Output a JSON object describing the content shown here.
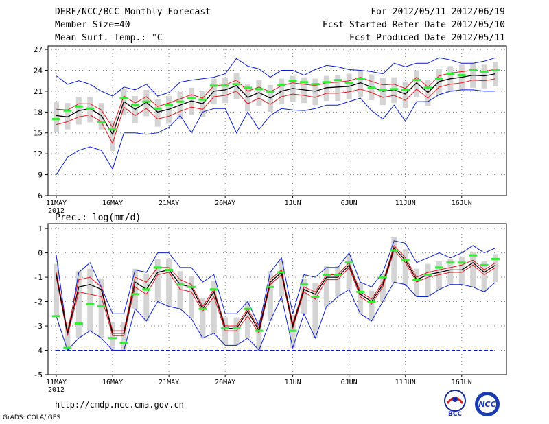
{
  "header": {
    "title": "DERF/NCC/BCC Monthly Forecast",
    "member": "Member Size=40",
    "variable": "Mean Surf. Temp.: °C",
    "period": "For 2012/05/11-2012/06/19",
    "started": "Fcst Started Refer Date 2012/05/10",
    "produced": "Fcst Produced Date 2012/05/11"
  },
  "footer": {
    "url": "http://cmdp.ncc.cma.gov.cn",
    "grads": "GrADS: COLA/IGES",
    "logo_bcc": "BCC",
    "logo_ncc": "NCC"
  },
  "colors": {
    "ens_mean": "#000000",
    "spread": "#e0151c",
    "extreme": "#0a1ecc",
    "clim": "#33ee33",
    "box": "#d4d4d4",
    "grid": "#808080"
  },
  "chart_data": [
    {
      "type": "line",
      "title": "Mean Surf. Temp.: °C",
      "xlabel": "",
      "ylabel": "°C",
      "ylim": [
        6,
        27.5
      ],
      "yticks": [
        6,
        9,
        12,
        15,
        18,
        21,
        24,
        27
      ],
      "x": [
        1,
        2,
        3,
        4,
        5,
        6,
        7,
        8,
        9,
        10,
        11,
        12,
        13,
        14,
        15,
        16,
        17,
        18,
        19,
        20,
        21,
        22,
        23,
        24,
        25,
        26,
        27,
        28,
        29,
        30,
        31,
        32,
        33,
        34,
        35,
        36,
        37,
        38,
        39,
        40
      ],
      "xticks": [
        {
          "day": 1,
          "label": "11MAY",
          "sub": "2012"
        },
        {
          "day": 6,
          "label": "16MAY"
        },
        {
          "day": 11,
          "label": "21MAY"
        },
        {
          "day": 16,
          "label": "26MAY"
        },
        {
          "day": 22,
          "label": "1JUN"
        },
        {
          "day": 27,
          "label": "6JUN"
        },
        {
          "day": 32,
          "label": "11JUN"
        },
        {
          "day": 37,
          "label": "16JUN"
        }
      ],
      "series": [
        {
          "name": "Ensemble Mean",
          "values": [
            17.5,
            17.3,
            18.2,
            18.5,
            17.5,
            14.8,
            19.5,
            18.4,
            19.4,
            18.0,
            18.4,
            19.0,
            19.6,
            19.2,
            21.0,
            21.2,
            21.8,
            20.1,
            20.8,
            20.0,
            21.0,
            21.4,
            21.2,
            21.0,
            21.5,
            21.6,
            21.7,
            22.2,
            21.6,
            21.0,
            21.2,
            20.6,
            22.2,
            20.8,
            22.4,
            22.8,
            23.0,
            23.3,
            23.2,
            23.5
          ]
        },
        {
          "name": "Spread Upper",
          "values": [
            18.4,
            18.3,
            19.2,
            19.2,
            18.3,
            15.8,
            20.3,
            19.3,
            20.2,
            18.8,
            19.3,
            19.9,
            20.5,
            20.0,
            21.8,
            21.9,
            22.6,
            21.0,
            21.6,
            20.9,
            21.8,
            22.2,
            22.0,
            21.8,
            22.2,
            22.3,
            22.5,
            23.0,
            22.4,
            21.9,
            22.0,
            21.4,
            23.0,
            21.6,
            23.2,
            23.6,
            23.8,
            24.0,
            23.8,
            24.2
          ]
        },
        {
          "name": "Spread Lower",
          "values": [
            16.2,
            16.6,
            17.3,
            17.6,
            16.6,
            13.5,
            18.7,
            17.5,
            18.5,
            17.0,
            17.4,
            18.1,
            18.7,
            18.4,
            20.2,
            20.4,
            21.0,
            19.2,
            20.0,
            19.1,
            20.2,
            20.6,
            20.4,
            20.1,
            20.7,
            20.7,
            20.9,
            21.3,
            20.8,
            20.1,
            20.4,
            19.7,
            21.3,
            20.0,
            21.6,
            22.0,
            22.2,
            22.6,
            22.5,
            22.8
          ]
        },
        {
          "name": "Ensemble Max",
          "values": [
            23.2,
            22.0,
            22.5,
            22.0,
            21.0,
            20.3,
            21.6,
            21.2,
            22.0,
            20.3,
            20.8,
            22.3,
            22.6,
            22.8,
            23.0,
            23.5,
            25.7,
            24.6,
            24.2,
            23.0,
            24.0,
            24.0,
            23.3,
            24.1,
            24.7,
            24.5,
            24.1,
            24.0,
            23.8,
            23.5,
            25.0,
            24.5,
            25.0,
            25.0,
            25.8,
            25.5,
            25.0,
            25.0,
            25.3,
            25.8
          ]
        },
        {
          "name": "Ensemble Min",
          "values": [
            9.0,
            11.5,
            12.5,
            13.0,
            12.5,
            9.8,
            15.0,
            15.0,
            14.8,
            15.0,
            15.8,
            17.5,
            15.0,
            18.0,
            18.5,
            18.5,
            15.0,
            18.0,
            15.5,
            17.5,
            18.5,
            18.3,
            18.2,
            18.5,
            19.0,
            19.0,
            19.5,
            20.0,
            18.2,
            17.0,
            19.0,
            16.7,
            19.5,
            19.5,
            20.5,
            21.0,
            21.2,
            21.2,
            21.0,
            21.0
          ]
        },
        {
          "name": "Climatology",
          "values": [
            17.0,
            18.2,
            18.8,
            18.5,
            16.5,
            15.5,
            20.0,
            19.0,
            19.5,
            18.5,
            19.0,
            19.5,
            20.0,
            19.8,
            21.8,
            21.8,
            22.0,
            21.5,
            21.3,
            20.9,
            21.9,
            22.5,
            22.3,
            22.0,
            22.3,
            22.6,
            22.2,
            22.8,
            21.5,
            21.2,
            21.3,
            21.2,
            22.6,
            21.5,
            22.8,
            23.5,
            23.3,
            24.0,
            23.8,
            24.0
          ]
        }
      ]
    },
    {
      "type": "line",
      "title": "Prec.: log(mm/d)",
      "xlabel": "",
      "ylabel": "log(mm/d)",
      "ylim": [
        -5,
        1.2
      ],
      "yticks": [
        -5,
        -4,
        -3,
        -2,
        -1,
        0,
        1
      ],
      "x": [
        1,
        2,
        3,
        4,
        5,
        6,
        7,
        8,
        9,
        10,
        11,
        12,
        13,
        14,
        15,
        16,
        17,
        18,
        19,
        20,
        21,
        22,
        23,
        24,
        25,
        26,
        27,
        28,
        29,
        30,
        31,
        32,
        33,
        34,
        35,
        36,
        37,
        38,
        39,
        40
      ],
      "xticks": [
        {
          "day": 1,
          "label": "11MAY",
          "sub": "2012"
        },
        {
          "day": 6,
          "label": "16MAY"
        },
        {
          "day": 11,
          "label": "21MAY"
        },
        {
          "day": 16,
          "label": "26MAY"
        },
        {
          "day": 22,
          "label": "1JUN"
        },
        {
          "day": 27,
          "label": "6JUN"
        },
        {
          "day": 32,
          "label": "11JUN"
        },
        {
          "day": 37,
          "label": "16JUN"
        }
      ],
      "baseline": -4,
      "series": [
        {
          "name": "Ensemble Mean",
          "values": [
            -0.9,
            -3.3,
            -1.4,
            -1.3,
            -1.5,
            -3.3,
            -3.3,
            -1.2,
            -1.5,
            -0.8,
            -0.7,
            -1.3,
            -1.4,
            -2.3,
            -1.6,
            -3.1,
            -3.1,
            -2.4,
            -3.2,
            -1.2,
            -0.8,
            -3.0,
            -1.5,
            -1.7,
            -1.0,
            -1.0,
            -0.5,
            -1.7,
            -2.0,
            -1.3,
            0.2,
            -0.3,
            -1.1,
            -0.9,
            -0.8,
            -0.7,
            -0.7,
            -0.4,
            -0.8,
            -0.5
          ]
        },
        {
          "name": "Spread Upper",
          "values": [
            -0.8,
            -3.2,
            -1.1,
            -1.0,
            -1.4,
            -3.2,
            -3.2,
            -1.0,
            -1.2,
            -0.6,
            -0.6,
            -1.1,
            -1.3,
            -2.2,
            -1.5,
            -3.0,
            -3.0,
            -2.3,
            -3.1,
            -1.1,
            -0.7,
            -2.9,
            -1.4,
            -1.6,
            -0.9,
            -0.9,
            -0.4,
            -1.6,
            -1.9,
            -1.2,
            0.3,
            -0.2,
            -1.0,
            -0.8,
            -0.7,
            -0.6,
            -0.5,
            -0.3,
            -0.7,
            -0.4
          ]
        },
        {
          "name": "Spread Lower",
          "values": [
            -1.0,
            -3.4,
            -1.6,
            -1.7,
            -1.8,
            -3.4,
            -3.4,
            -1.4,
            -1.7,
            -0.9,
            -0.8,
            -1.5,
            -1.6,
            -2.4,
            -1.8,
            -3.2,
            -3.2,
            -2.6,
            -3.3,
            -1.3,
            -0.9,
            -3.1,
            -1.6,
            -1.9,
            -1.1,
            -1.1,
            -0.6,
            -1.8,
            -2.1,
            -1.4,
            0.1,
            -0.4,
            -1.2,
            -1.0,
            -0.9,
            -0.8,
            -0.8,
            -0.5,
            -0.9,
            -0.6
          ]
        },
        {
          "name": "Ensemble Max",
          "values": [
            -0.1,
            -3.4,
            -0.8,
            -0.4,
            -1.4,
            -2.5,
            -2.5,
            -0.7,
            -0.8,
            0.0,
            0.0,
            -0.6,
            -0.6,
            -1.2,
            -0.9,
            -2.5,
            -2.5,
            -2.0,
            -3.0,
            -0.8,
            -0.2,
            -2.5,
            -0.9,
            -1.0,
            -0.6,
            -0.6,
            0.0,
            -1.2,
            -1.4,
            -0.8,
            0.5,
            0.4,
            -0.4,
            -0.2,
            0.0,
            -0.2,
            0.0,
            0.3,
            0.0,
            0.2
          ]
        },
        {
          "name": "Ensemble Min",
          "values": [
            -2.6,
            -4.0,
            -3.5,
            -3.2,
            -3.5,
            -4.0,
            -4.0,
            -2.3,
            -2.8,
            -2.0,
            -2.2,
            -2.3,
            -2.7,
            -3.5,
            -3.3,
            -3.8,
            -3.8,
            -3.5,
            -4.0,
            -2.8,
            -1.8,
            -3.9,
            -2.5,
            -3.5,
            -2.2,
            -1.8,
            -1.5,
            -2.5,
            -2.8,
            -2.0,
            -1.2,
            -1.3,
            -1.8,
            -1.8,
            -1.5,
            -1.3,
            -1.3,
            -1.4,
            -1.6,
            -1.2
          ]
        },
        {
          "name": "Climatology",
          "values": [
            -2.6,
            -3.9,
            -2.9,
            -2.1,
            -2.2,
            -3.5,
            -3.7,
            -1.7,
            -1.5,
            -0.6,
            -0.7,
            -1.3,
            -1.4,
            -2.3,
            -1.5,
            -3.1,
            -3.1,
            -2.3,
            -3.2,
            -1.4,
            -0.8,
            -3.2,
            -1.3,
            -1.8,
            -0.9,
            -0.9,
            -0.4,
            -1.6,
            -2.0,
            -1.0,
            0.1,
            -0.3,
            -1.1,
            -0.9,
            -0.6,
            -0.4,
            -0.4,
            -0.1,
            -0.5,
            -0.25
          ]
        }
      ]
    }
  ]
}
